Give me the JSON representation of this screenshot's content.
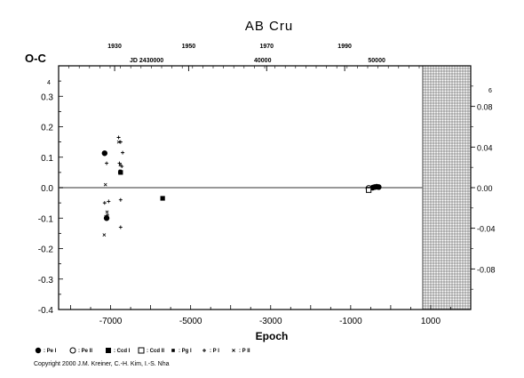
{
  "chart_data": {
    "type": "scatter",
    "title": "AB Cru",
    "ylabel": "O-C",
    "xlabel": "Epoch",
    "x_range": [
      -8300,
      2000
    ],
    "y_range": [
      -0.4,
      0.4
    ],
    "x_ticks": [
      "-7000",
      "-5000",
      "-3000",
      "-1000",
      "1000"
    ],
    "x_tick_values": [
      -7000,
      -5000,
      -3000,
      -1000,
      1000
    ],
    "y_ticks": [
      "0.3",
      "0.2",
      "0.1",
      "0.0",
      "-0.1",
      "-0.2",
      "-0.3",
      "-0.4"
    ],
    "y_tick_values": [
      0.3,
      0.2,
      0.1,
      0.0,
      -0.1,
      -0.2,
      -0.3,
      -0.4
    ],
    "y_corner_label": "4",
    "top_year_ticks": [
      "1930",
      "1950",
      "1970",
      "1990"
    ],
    "top_year_epochs": [
      -6900,
      -5050,
      -3100,
      -1150
    ],
    "top_jd_ticks": [
      "JD 2430000",
      "40000",
      "50000"
    ],
    "top_jd_epochs": [
      -6100,
      -3200,
      -350
    ],
    "right_ticks": [
      "0.08",
      "0.04",
      "0.00",
      "-0.04",
      "-0.08"
    ],
    "right_tick_values": [
      0.08,
      0.04,
      0.0,
      -0.04,
      -0.08
    ],
    "right_corner_label": "6",
    "right_range": [
      -0.12,
      0.12
    ],
    "grid_panel_x_range": [
      1000,
      2000
    ],
    "grid": false,
    "legend_position": "bottom",
    "series": [
      {
        "name": ": Pe I",
        "symbol": "filled-circle",
        "points": [
          [
            -7150,
            0.113
          ],
          [
            -7100,
            -0.1
          ],
          [
            -450,
            0.0
          ],
          [
            -400,
            0.002
          ],
          [
            -350,
            0.003
          ],
          [
            -300,
            0.002
          ]
        ]
      },
      {
        "name": ": Pe II",
        "symbol": "open-circle",
        "points": [
          [
            -550,
            -0.002
          ]
        ]
      },
      {
        "name": ": Ccd I",
        "symbol": "filled-square",
        "points": [
          [
            -6750,
            0.05
          ],
          [
            -5700,
            -0.035
          ],
          [
            -550,
            -0.005
          ]
        ]
      },
      {
        "name": ": Ccd II",
        "symbol": "open-square",
        "points": [
          [
            -550,
            -0.008
          ]
        ]
      },
      {
        "name": ": Pg I",
        "symbol": "filled-square-small",
        "points": [
          [
            -6780,
            0.05
          ],
          [
            -6760,
            0.055
          ]
        ]
      },
      {
        "name": ": P I",
        "symbol": "plus",
        "points": [
          [
            -7100,
            0.08
          ],
          [
            -7150,
            -0.05
          ],
          [
            -7050,
            -0.045
          ],
          [
            -6800,
            0.165
          ],
          [
            -6750,
            0.15
          ],
          [
            -6700,
            0.115
          ],
          [
            -6780,
            0.08
          ],
          [
            -6720,
            0.07
          ],
          [
            -6750,
            -0.04
          ],
          [
            -6750,
            -0.13
          ],
          [
            -7080,
            -0.09
          ]
        ]
      },
      {
        "name": ": P II",
        "symbol": "cross",
        "points": [
          [
            -7130,
            0.01
          ],
          [
            -7160,
            -0.155
          ],
          [
            -7120,
            -0.095
          ],
          [
            -7090,
            -0.08
          ],
          [
            -6800,
            0.15
          ],
          [
            -6760,
            0.075
          ]
        ]
      }
    ],
    "copyright": "Copyright 2000 J.M. Kreiner, C.-H. Kim, I.-S. Nha"
  }
}
